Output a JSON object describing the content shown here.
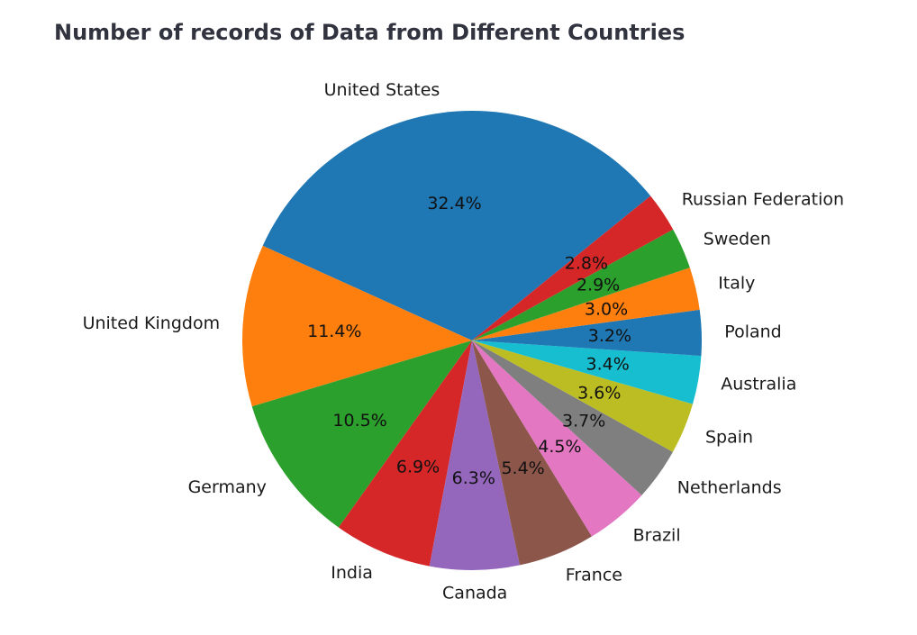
{
  "chart_data": {
    "type": "pie",
    "title": "Number of records of Data from Different Countries",
    "start_angle_deg": 39,
    "direction": "counterclockwise",
    "slices": [
      {
        "label": "United States",
        "value": 32.4,
        "pct_label": "32.4%",
        "color": "#1f77b4"
      },
      {
        "label": "United Kingdom",
        "value": 11.4,
        "pct_label": "11.4%",
        "color": "#ff7f0e"
      },
      {
        "label": "Germany",
        "value": 10.5,
        "pct_label": "10.5%",
        "color": "#2ca02c"
      },
      {
        "label": "India",
        "value": 6.9,
        "pct_label": "6.9%",
        "color": "#d62728"
      },
      {
        "label": "Canada",
        "value": 6.3,
        "pct_label": "6.3%",
        "color": "#9467bd"
      },
      {
        "label": "France",
        "value": 5.4,
        "pct_label": "5.4%",
        "color": "#8c564b"
      },
      {
        "label": "Brazil",
        "value": 4.5,
        "pct_label": "4.5%",
        "color": "#e377c2"
      },
      {
        "label": "Netherlands",
        "value": 3.7,
        "pct_label": "3.7%",
        "color": "#7f7f7f"
      },
      {
        "label": "Spain",
        "value": 3.6,
        "pct_label": "3.6%",
        "color": "#bcbd22"
      },
      {
        "label": "Australia",
        "value": 3.4,
        "pct_label": "3.4%",
        "color": "#17becf"
      },
      {
        "label": "Poland",
        "value": 3.2,
        "pct_label": "3.2%",
        "color": "#1f77b4"
      },
      {
        "label": "Italy",
        "value": 3.0,
        "pct_label": "3.0%",
        "color": "#ff7f0e"
      },
      {
        "label": "Sweden",
        "value": 2.9,
        "pct_label": "2.9%",
        "color": "#2ca02c"
      },
      {
        "label": "Russian Federation",
        "value": 2.8,
        "pct_label": "2.8%",
        "color": "#d62728"
      }
    ]
  }
}
